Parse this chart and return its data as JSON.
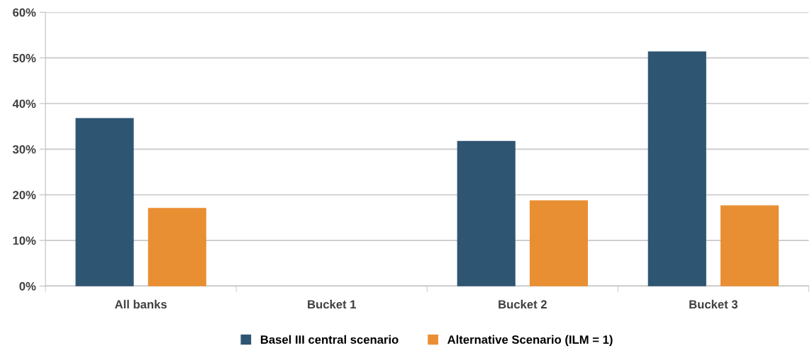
{
  "chart_data": {
    "type": "bar",
    "categories": [
      "All banks",
      "Bucket 1",
      "Bucket 2",
      "Bucket 3"
    ],
    "series": [
      {
        "name": "Basel III central scenario",
        "color": "#2e5572",
        "values": [
          36.7,
          null,
          31.7,
          51.3
        ]
      },
      {
        "name": "Alternative Scenario (ILM = 1)",
        "color": "#e98f33",
        "values": [
          17.0,
          null,
          18.7,
          17.6
        ]
      }
    ],
    "ylim": [
      0,
      60
    ],
    "yticks": [
      {
        "value": 0,
        "label": "0%"
      },
      {
        "value": 10,
        "label": "10%"
      },
      {
        "value": 20,
        "label": "20%"
      },
      {
        "value": 30,
        "label": "30%"
      },
      {
        "value": 40,
        "label": "40%"
      },
      {
        "value": 50,
        "label": "50%"
      },
      {
        "value": 60,
        "label": "60%"
      }
    ],
    "grid": "y",
    "legend": "bottom"
  }
}
